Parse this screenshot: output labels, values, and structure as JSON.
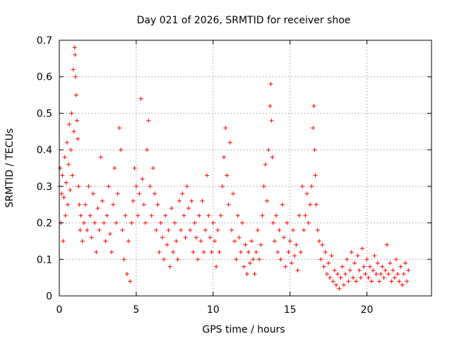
{
  "chart_data": {
    "type": "scatter",
    "title": "Day 021 of 2026, SRMTID for receiver shoe",
    "xlabel": "GPS time / hours",
    "ylabel": "SRMTID / TECUs",
    "xlim": [
      0,
      24.2
    ],
    "ylim": [
      0,
      0.7
    ],
    "xticks": [
      0,
      5,
      10,
      15,
      20
    ],
    "xtick_labels": [
      "0",
      "5",
      "10",
      "15",
      "20"
    ],
    "yticks": [
      0,
      0.1,
      0.2,
      0.3,
      0.4,
      0.5,
      0.6,
      0.7
    ],
    "ytick_labels": [
      "0",
      "0.1",
      "0.2",
      "0.3",
      "0.4",
      "0.5",
      "0.6",
      "0.7"
    ],
    "grid": true,
    "marker": "+",
    "color": "#ff0000",
    "series": [
      {
        "name": "SRMTID",
        "points": [
          [
            0.0,
            0.3
          ],
          [
            0.05,
            0.35
          ],
          [
            0.1,
            0.2
          ],
          [
            0.15,
            0.28
          ],
          [
            0.2,
            0.33
          ],
          [
            0.25,
            0.15
          ],
          [
            0.3,
            0.27
          ],
          [
            0.35,
            0.38
          ],
          [
            0.4,
            0.22
          ],
          [
            0.45,
            0.31
          ],
          [
            0.5,
            0.42
          ],
          [
            0.55,
            0.25
          ],
          [
            0.6,
            0.36
          ],
          [
            0.65,
            0.47
          ],
          [
            0.7,
            0.29
          ],
          [
            0.75,
            0.4
          ],
          [
            0.8,
            0.5
          ],
          [
            0.85,
            0.33
          ],
          [
            0.9,
            0.62
          ],
          [
            0.95,
            0.45
          ],
          [
            1.0,
            0.68
          ],
          [
            1.02,
            0.66
          ],
          [
            1.05,
            0.6
          ],
          [
            1.1,
            0.55
          ],
          [
            1.15,
            0.48
          ],
          [
            1.2,
            0.43
          ],
          [
            1.25,
            0.3
          ],
          [
            1.3,
            0.25
          ],
          [
            1.35,
            0.18
          ],
          [
            1.4,
            0.22
          ],
          [
            1.5,
            0.15
          ],
          [
            1.6,
            0.2
          ],
          [
            1.7,
            0.25
          ],
          [
            1.8,
            0.18
          ],
          [
            1.9,
            0.3
          ],
          [
            2.0,
            0.22
          ],
          [
            2.1,
            0.16
          ],
          [
            2.2,
            0.28
          ],
          [
            2.3,
            0.2
          ],
          [
            2.4,
            0.12
          ],
          [
            2.5,
            0.24
          ],
          [
            2.6,
            0.18
          ],
          [
            2.7,
            0.38
          ],
          [
            2.8,
            0.26
          ],
          [
            2.9,
            0.2
          ],
          [
            3.0,
            0.15
          ],
          [
            3.1,
            0.22
          ],
          [
            3.2,
            0.3
          ],
          [
            3.3,
            0.17
          ],
          [
            3.4,
            0.12
          ],
          [
            3.5,
            0.25
          ],
          [
            3.6,
            0.35
          ],
          [
            3.7,
            0.2
          ],
          [
            3.8,
            0.28
          ],
          [
            3.9,
            0.46
          ],
          [
            4.0,
            0.4
          ],
          [
            4.1,
            0.18
          ],
          [
            4.2,
            0.1
          ],
          [
            4.3,
            0.22
          ],
          [
            4.4,
            0.06
          ],
          [
            4.5,
            0.15
          ],
          [
            4.6,
            0.04
          ],
          [
            4.7,
            0.2
          ],
          [
            4.8,
            0.26
          ],
          [
            4.9,
            0.35
          ],
          [
            5.0,
            0.3
          ],
          [
            5.1,
            0.22
          ],
          [
            5.2,
            0.28
          ],
          [
            5.3,
            0.54
          ],
          [
            5.4,
            0.32
          ],
          [
            5.5,
            0.25
          ],
          [
            5.6,
            0.2
          ],
          [
            5.7,
            0.4
          ],
          [
            5.8,
            0.48
          ],
          [
            5.9,
            0.3
          ],
          [
            6.0,
            0.22
          ],
          [
            6.1,
            0.35
          ],
          [
            6.2,
            0.28
          ],
          [
            6.3,
            0.18
          ],
          [
            6.4,
            0.25
          ],
          [
            6.5,
            0.12
          ],
          [
            6.6,
            0.2
          ],
          [
            6.7,
            0.16
          ],
          [
            6.8,
            0.1
          ],
          [
            6.9,
            0.22
          ],
          [
            7.0,
            0.14
          ],
          [
            7.1,
            0.18
          ],
          [
            7.2,
            0.08
          ],
          [
            7.3,
            0.24
          ],
          [
            7.4,
            0.12
          ],
          [
            7.5,
            0.2
          ],
          [
            7.6,
            0.15
          ],
          [
            7.7,
            0.1
          ],
          [
            7.8,
            0.26
          ],
          [
            7.9,
            0.18
          ],
          [
            8.0,
            0.28
          ],
          [
            8.1,
            0.22
          ],
          [
            8.2,
            0.16
          ],
          [
            8.3,
            0.3
          ],
          [
            8.4,
            0.24
          ],
          [
            8.5,
            0.18
          ],
          [
            8.6,
            0.26
          ],
          [
            8.7,
            0.12
          ],
          [
            8.8,
            0.2
          ],
          [
            8.9,
            0.16
          ],
          [
            9.0,
            0.1
          ],
          [
            9.1,
            0.22
          ],
          [
            9.2,
            0.15
          ],
          [
            9.3,
            0.26
          ],
          [
            9.4,
            0.12
          ],
          [
            9.5,
            0.18
          ],
          [
            9.6,
            0.33
          ],
          [
            9.7,
            0.22
          ],
          [
            9.8,
            0.16
          ],
          [
            9.9,
            0.12
          ],
          [
            10.0,
            0.2
          ],
          [
            10.1,
            0.15
          ],
          [
            10.2,
            0.08
          ],
          [
            10.3,
            0.18
          ],
          [
            10.4,
            0.12
          ],
          [
            10.5,
            0.22
          ],
          [
            10.6,
            0.3
          ],
          [
            10.7,
            0.38
          ],
          [
            10.8,
            0.46
          ],
          [
            10.9,
            0.33
          ],
          [
            11.0,
            0.25
          ],
          [
            11.1,
            0.42
          ],
          [
            11.2,
            0.18
          ],
          [
            11.3,
            0.28
          ],
          [
            11.4,
            0.15
          ],
          [
            11.5,
            0.1
          ],
          [
            11.6,
            0.22
          ],
          [
            11.7,
            0.16
          ],
          [
            11.8,
            0.12
          ],
          [
            11.9,
            0.2
          ],
          [
            12.0,
            0.08
          ],
          [
            12.1,
            0.14
          ],
          [
            12.2,
            0.06
          ],
          [
            12.3,
            0.12
          ],
          [
            12.4,
            0.09
          ],
          [
            12.5,
            0.15
          ],
          [
            12.6,
            0.1
          ],
          [
            12.7,
            0.06
          ],
          [
            12.8,
            0.12
          ],
          [
            12.9,
            0.18
          ],
          [
            13.0,
            0.1
          ],
          [
            13.1,
            0.14
          ],
          [
            13.2,
            0.22
          ],
          [
            13.3,
            0.3
          ],
          [
            13.4,
            0.36
          ],
          [
            13.5,
            0.26
          ],
          [
            13.6,
            0.4
          ],
          [
            13.7,
            0.52
          ],
          [
            13.75,
            0.58
          ],
          [
            13.8,
            0.48
          ],
          [
            13.85,
            0.38
          ],
          [
            13.9,
            0.2
          ],
          [
            14.0,
            0.15
          ],
          [
            14.1,
            0.22
          ],
          [
            14.2,
            0.12
          ],
          [
            14.3,
            0.18
          ],
          [
            14.4,
            0.1
          ],
          [
            14.5,
            0.25
          ],
          [
            14.6,
            0.16
          ],
          [
            14.7,
            0.08
          ],
          [
            14.8,
            0.2
          ],
          [
            14.9,
            0.12
          ],
          [
            15.0,
            0.15
          ],
          [
            15.1,
            0.09
          ],
          [
            15.2,
            0.18
          ],
          [
            15.3,
            0.11
          ],
          [
            15.4,
            0.14
          ],
          [
            15.5,
            0.07
          ],
          [
            15.6,
            0.22
          ],
          [
            15.7,
            0.12
          ],
          [
            15.8,
            0.3
          ],
          [
            15.9,
            0.18
          ],
          [
            16.0,
            0.22
          ],
          [
            16.1,
            0.28
          ],
          [
            16.2,
            0.2
          ],
          [
            16.3,
            0.25
          ],
          [
            16.4,
            0.3
          ],
          [
            16.5,
            0.46
          ],
          [
            16.55,
            0.52
          ],
          [
            16.6,
            0.4
          ],
          [
            16.65,
            0.33
          ],
          [
            16.7,
            0.25
          ],
          [
            16.8,
            0.18
          ],
          [
            16.9,
            0.15
          ],
          [
            17.0,
            0.1
          ],
          [
            17.1,
            0.14
          ],
          [
            17.2,
            0.08
          ],
          [
            17.3,
            0.12
          ],
          [
            17.4,
            0.06
          ],
          [
            17.5,
            0.09
          ],
          [
            17.6,
            0.05
          ],
          [
            17.7,
            0.11
          ],
          [
            17.8,
            0.04
          ],
          [
            17.9,
            0.07
          ],
          [
            18.0,
            0.03
          ],
          [
            18.1,
            0.06
          ],
          [
            18.2,
            0.02
          ],
          [
            18.3,
            0.05
          ],
          [
            18.4,
            0.08
          ],
          [
            18.5,
            0.03
          ],
          [
            18.6,
            0.06
          ],
          [
            18.7,
            0.1
          ],
          [
            18.8,
            0.04
          ],
          [
            18.9,
            0.07
          ],
          [
            19.0,
            0.12
          ],
          [
            19.1,
            0.05
          ],
          [
            19.2,
            0.09
          ],
          [
            19.3,
            0.04
          ],
          [
            19.4,
            0.11
          ],
          [
            19.5,
            0.07
          ],
          [
            19.6,
            0.05
          ],
          [
            19.7,
            0.13
          ],
          [
            19.8,
            0.08
          ],
          [
            19.9,
            0.06
          ],
          [
            20.0,
            0.1
          ],
          [
            20.1,
            0.05
          ],
          [
            20.2,
            0.08
          ],
          [
            20.3,
            0.04
          ],
          [
            20.4,
            0.07
          ],
          [
            20.5,
            0.11
          ],
          [
            20.6,
            0.06
          ],
          [
            20.7,
            0.09
          ],
          [
            20.8,
            0.04
          ],
          [
            20.9,
            0.06
          ],
          [
            21.0,
            0.08
          ],
          [
            21.1,
            0.05
          ],
          [
            21.2,
            0.07
          ],
          [
            21.3,
            0.14
          ],
          [
            21.4,
            0.06
          ],
          [
            21.5,
            0.09
          ],
          [
            21.6,
            0.04
          ],
          [
            21.7,
            0.07
          ],
          [
            21.8,
            0.05
          ],
          [
            21.9,
            0.1
          ],
          [
            22.0,
            0.06
          ],
          [
            22.1,
            0.04
          ],
          [
            22.2,
            0.08
          ],
          [
            22.3,
            0.03
          ],
          [
            22.4,
            0.06
          ],
          [
            22.5,
            0.09
          ],
          [
            22.6,
            0.04
          ],
          [
            22.7,
            0.07
          ]
        ]
      }
    ]
  }
}
